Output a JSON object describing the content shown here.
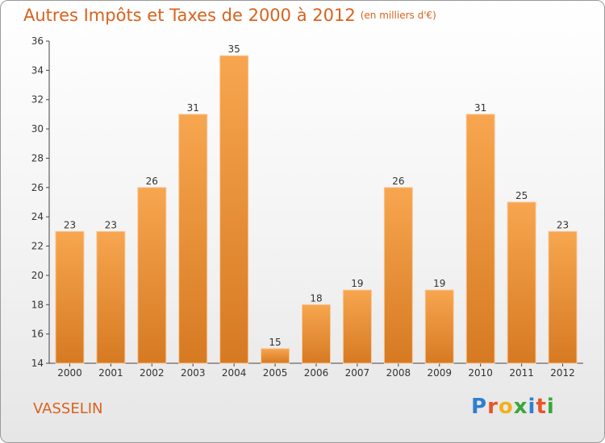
{
  "header": {
    "title": "Autres Impôts et Taxes de 2000 à 2012",
    "subtitle": "(en milliers d'€)"
  },
  "footer": {
    "commune": "VASSELIN",
    "logo": "Proxiti"
  },
  "colors": {
    "title": "#d9621c",
    "bar_light": "#f7a64f",
    "bar_dark": "#d67a22"
  },
  "chart_data": {
    "type": "bar",
    "title": "Autres Impôts et Taxes de 2000 à 2012",
    "subtitle": "(en milliers d'€)",
    "categories": [
      "2000",
      "2001",
      "2002",
      "2003",
      "2004",
      "2005",
      "2006",
      "2007",
      "2008",
      "2009",
      "2010",
      "2011",
      "2012"
    ],
    "values": [
      23,
      23,
      26,
      31,
      35,
      15,
      18,
      19,
      26,
      19,
      31,
      25,
      23
    ],
    "ylim": [
      14,
      36
    ],
    "yticks": [
      14,
      16,
      18,
      20,
      22,
      24,
      26,
      28,
      30,
      32,
      34,
      36
    ],
    "grid": false,
    "xlabel": "",
    "ylabel": ""
  }
}
